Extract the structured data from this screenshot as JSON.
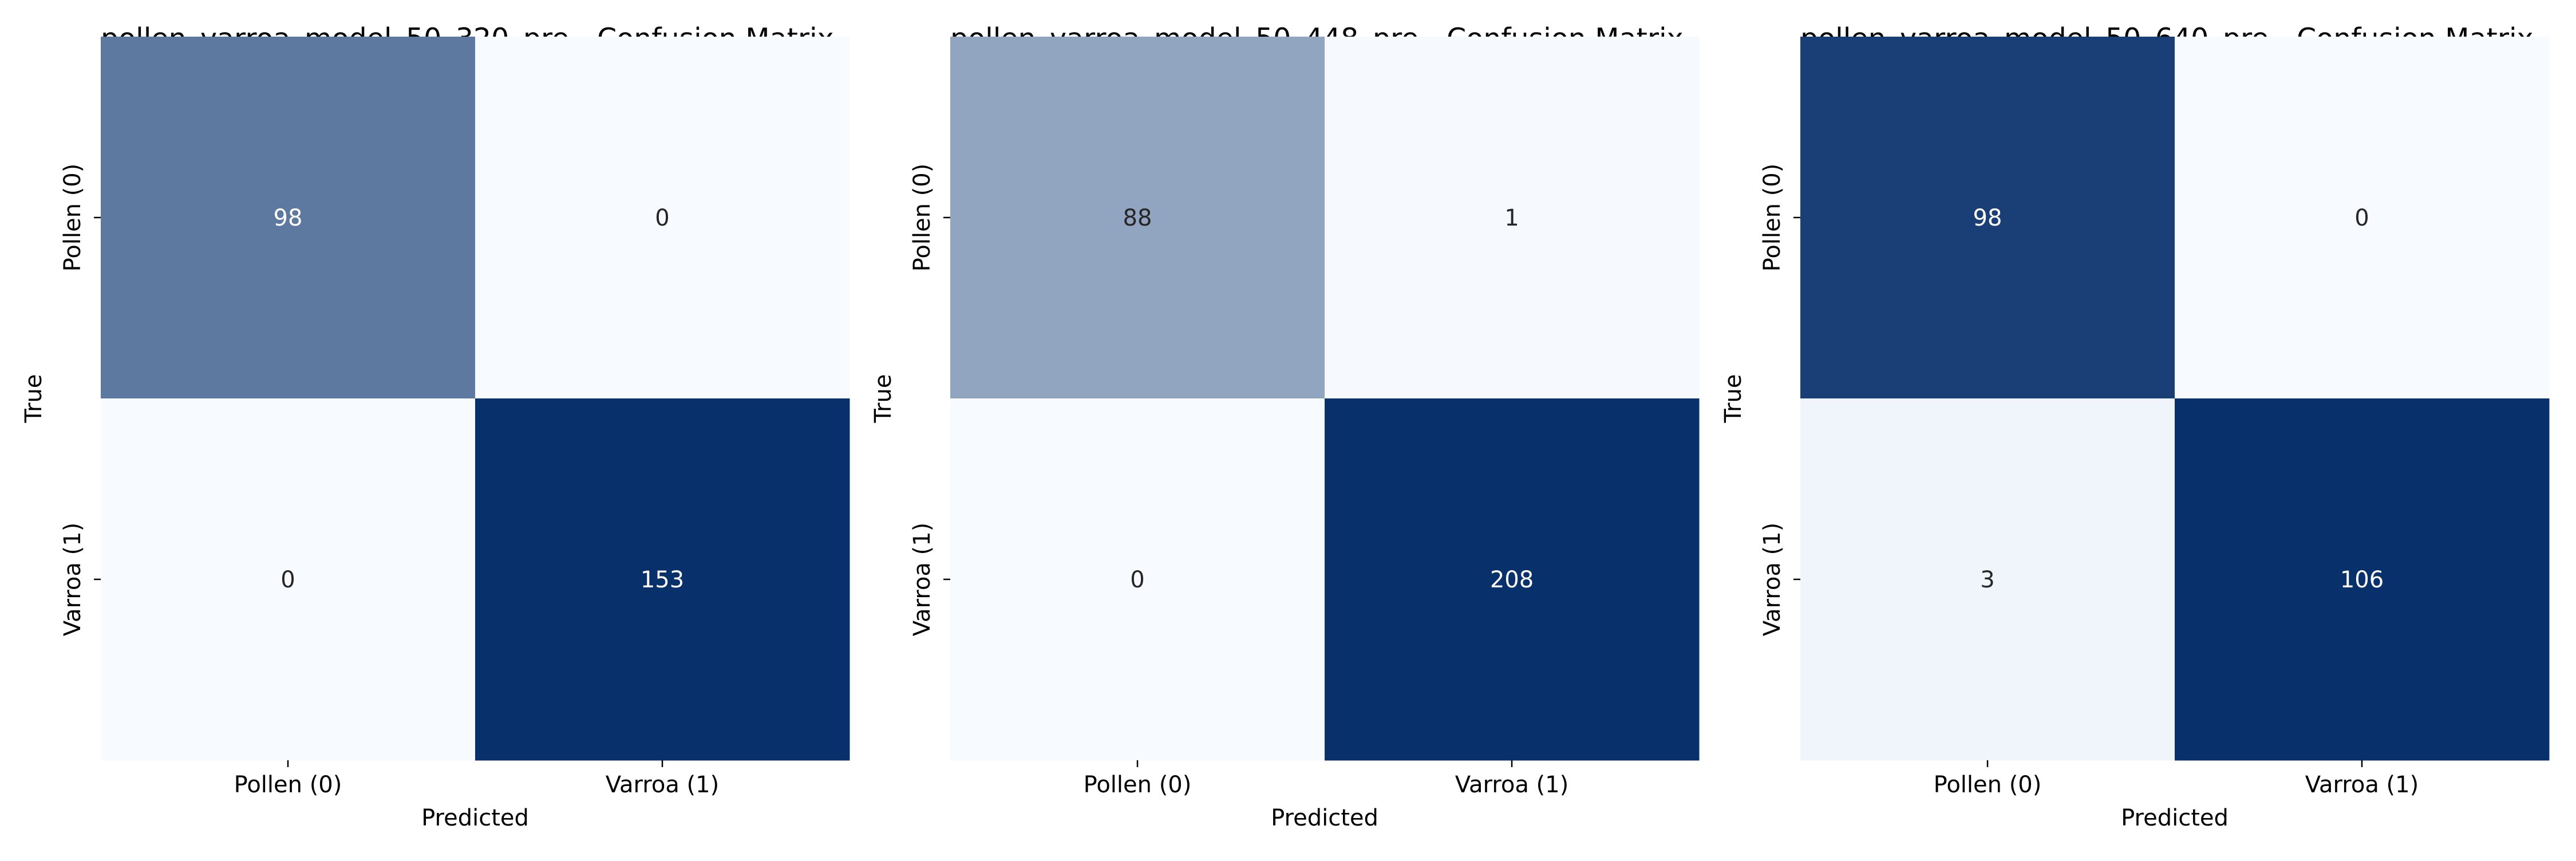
{
  "chart_data": [
    {
      "type": "heatmap",
      "title": "pollen_varroa_model_50_320_pre - Confusion Matrix",
      "xlabel": "Predicted",
      "ylabel": "True",
      "x_categories": [
        "Pollen (0)",
        "Varroa (1)"
      ],
      "y_categories": [
        "Pollen (0)",
        "Varroa (1)"
      ],
      "values": [
        [
          98,
          0
        ],
        [
          0,
          153
        ]
      ],
      "colormap": "Blues",
      "colorbar": false
    },
    {
      "type": "heatmap",
      "title": "pollen_varroa_model_50_448_pre - Confusion Matrix",
      "xlabel": "Predicted",
      "ylabel": "True",
      "x_categories": [
        "Pollen (0)",
        "Varroa (1)"
      ],
      "y_categories": [
        "Pollen (0)",
        "Varroa (1)"
      ],
      "values": [
        [
          88,
          1
        ],
        [
          0,
          208
        ]
      ],
      "colormap": "Blues",
      "colorbar": false
    },
    {
      "type": "heatmap",
      "title": "pollen_varroa_model_50_640_pre - Confusion Matrix",
      "xlabel": "Predicted",
      "ylabel": "True",
      "x_categories": [
        "Pollen (0)",
        "Varroa (1)"
      ],
      "y_categories": [
        "Pollen (0)",
        "Varroa (1)"
      ],
      "values": [
        [
          98,
          0
        ],
        [
          3,
          106
        ]
      ],
      "colormap": "Blues",
      "colorbar": false
    }
  ],
  "colors": {
    "low": "#f7fbff",
    "high": "#08306b",
    "text_light": "#ffffff",
    "text_dark": "#262626"
  }
}
